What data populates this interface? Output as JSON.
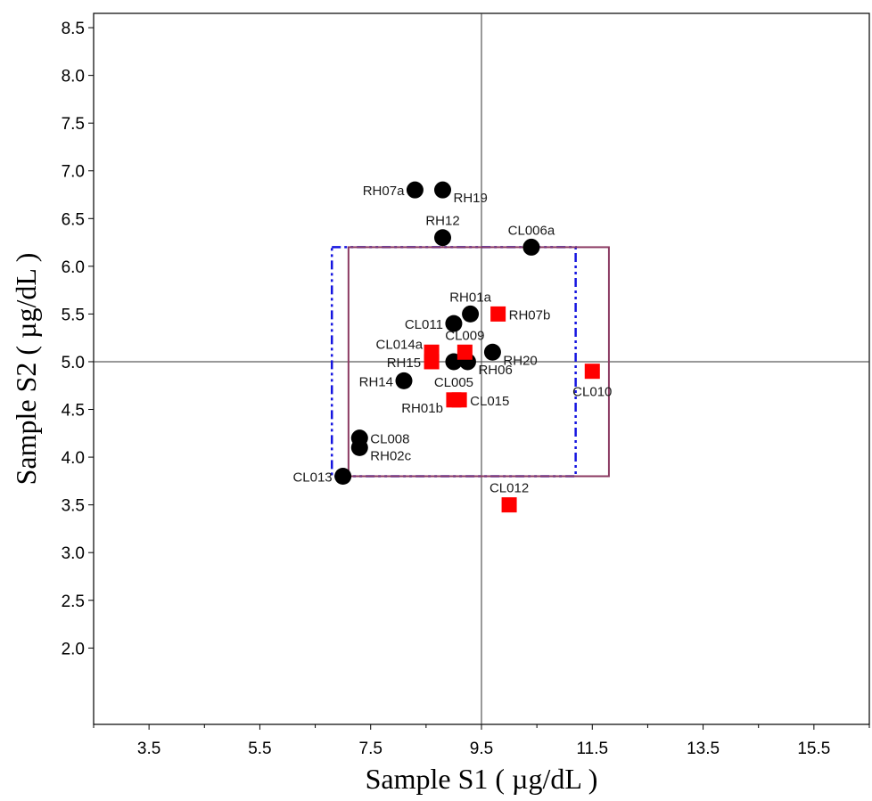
{
  "chart_data": {
    "type": "scatter",
    "xlabel": "Sample S1 ( µg/dL )",
    "ylabel": "Sample S2 ( µg/dL )",
    "xlim": [
      2.5,
      16.5
    ],
    "ylim": [
      1.2,
      8.65
    ],
    "x_ticks": [
      3.5,
      5.5,
      7.5,
      9.5,
      11.5,
      13.5,
      15.5
    ],
    "x_tick_labels": [
      "3.5",
      "5.5",
      "7.5",
      "9.5",
      "11.5",
      "13.5",
      "15.5"
    ],
    "y_ticks": [
      2.0,
      2.5,
      3.0,
      3.5,
      4.0,
      4.5,
      5.0,
      5.5,
      6.0,
      6.5,
      7.0,
      7.5,
      8.0,
      8.5
    ],
    "y_tick_labels": [
      "2.0",
      "2.5",
      "3.0",
      "3.5",
      "4.0",
      "4.5",
      "5.0",
      "5.5",
      "6.0",
      "6.5",
      "7.0",
      "7.5",
      "8.0",
      "8.5"
    ],
    "grid": false,
    "reference_lines": {
      "x": 9.5,
      "y": 5.0
    },
    "boxes": [
      {
        "style": "dash-dot",
        "color": "#1515e0",
        "x": [
          6.8,
          11.2
        ],
        "y": [
          3.8,
          6.2
        ]
      },
      {
        "style": "solid",
        "color": "#8b3a62",
        "x": [
          7.1,
          11.8
        ],
        "y": [
          3.8,
          6.2
        ]
      }
    ],
    "series": [
      {
        "marker": "circle",
        "color": "#000000",
        "points": [
          {
            "label": "RH07a",
            "x": 8.3,
            "y": 6.8
          },
          {
            "label": "RH19",
            "x": 8.8,
            "y": 6.8
          },
          {
            "label": "RH12",
            "x": 8.8,
            "y": 6.3
          },
          {
            "label": "CL006a",
            "x": 10.4,
            "y": 6.2
          },
          {
            "label": "RH01a",
            "x": 9.3,
            "y": 5.5
          },
          {
            "label": "CL011",
            "x": 9.0,
            "y": 5.4
          },
          {
            "label": "RH20",
            "x": 9.7,
            "y": 5.1
          },
          {
            "label": "CL005",
            "x": 9.0,
            "y": 5.0
          },
          {
            "label": "RH06",
            "x": 9.25,
            "y": 5.0
          },
          {
            "label": "RH14",
            "x": 8.1,
            "y": 4.8
          },
          {
            "label": "CL008",
            "x": 7.3,
            "y": 4.2
          },
          {
            "label": "RH02c",
            "x": 7.3,
            "y": 4.1
          },
          {
            "label": "CL013",
            "x": 7.0,
            "y": 3.8
          }
        ]
      },
      {
        "marker": "square",
        "color": "#ff0000",
        "points": [
          {
            "label": "RH07b",
            "x": 9.8,
            "y": 5.5
          },
          {
            "label": "CL014a",
            "x": 8.6,
            "y": 5.1
          },
          {
            "label": "RH15",
            "x": 8.6,
            "y": 5.0
          },
          {
            "label": "CL009",
            "x": 9.2,
            "y": 5.1
          },
          {
            "label": "CL010",
            "x": 11.5,
            "y": 4.9
          },
          {
            "label": "RH01b",
            "x": 9.0,
            "y": 4.6
          },
          {
            "label": "CL015",
            "x": 9.1,
            "y": 4.6
          },
          {
            "label": "CL012",
            "x": 10.0,
            "y": 3.5
          }
        ]
      }
    ]
  },
  "label_placement": {
    "RH07a": "left",
    "RH19": "right-below",
    "RH12": "above",
    "CL006a": "above",
    "RH01a": "above",
    "CL011": "left",
    "RH20": "right-below",
    "CL005": "below",
    "RH06": "right-below",
    "RH14": "left",
    "CL008": "right",
    "RH02c": "right-below",
    "CL013": "left",
    "RH07b": "right",
    "CL014a": "left-above",
    "RH15": "left",
    "CL009": "above",
    "CL010": "below",
    "RH01b": "left-below",
    "CL015": "right",
    "CL012": "above"
  }
}
